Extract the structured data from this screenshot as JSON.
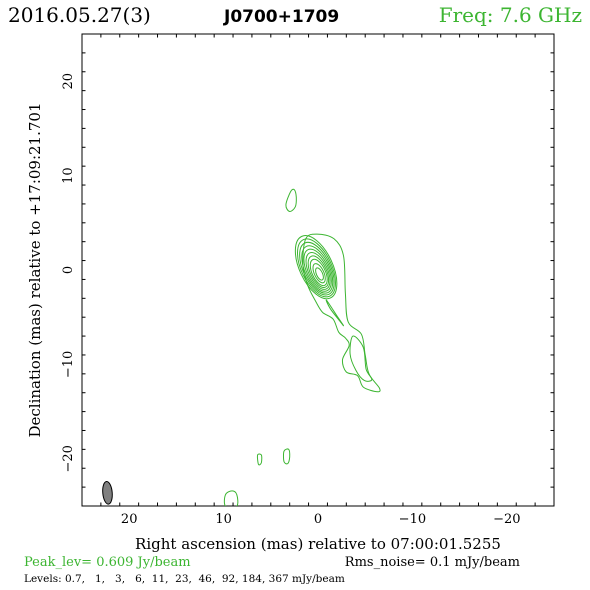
{
  "header": {
    "date": "2016.05.27(3)",
    "source": "J0700+1709",
    "frequency": "Freq: 7.6 GHz"
  },
  "footer": {
    "peak": "Peak_lev=  0.609 Jy/beam",
    "rms": "Rms_noise=  0.1 mJy/beam",
    "levels": "Levels: 0.7,   1,   3,   6,  11,  23,  46,  92, 184, 367 mJy/beam"
  },
  "colors": {
    "contour": "#3cb531",
    "header_freq": "#3cb531",
    "footer_peak": "#3cb531",
    "beam": "#808080",
    "axis": "#000000"
  },
  "chart_data": {
    "type": "contour",
    "title": "",
    "xlabel": "Right ascension (mas) relative to 07:00:01.5255",
    "ylabel": "Declination (mas) relative to +17:09:21.701",
    "xlim": [
      25,
      -25
    ],
    "ylim": [
      -25,
      25
    ],
    "xticks": [
      20,
      10,
      0,
      -10,
      -20
    ],
    "xtick_labels": [
      "20",
      "10",
      "0",
      "−10",
      "−20"
    ],
    "yticks": [
      20,
      10,
      0,
      -10,
      -20
    ],
    "ytick_labels": [
      "20",
      "10",
      "0",
      "−10",
      "−20"
    ],
    "contour_levels_mJy": [
      0.7,
      1,
      3,
      6,
      11,
      23,
      46,
      92,
      184,
      367
    ],
    "peak_Jy_per_beam": 0.609,
    "rms_mJy_per_beam": 0.1,
    "beam": {
      "x": 22.3,
      "y": -23.6,
      "major_mas": 1.2,
      "minor_mas": 0.5,
      "pa_deg": 5
    },
    "core": {
      "x": 0.2,
      "y": 0.3,
      "rings": [
        {
          "a": 3.6,
          "b": 1.75
        },
        {
          "a": 3.3,
          "b": 1.6
        },
        {
          "a": 3.0,
          "b": 1.45
        },
        {
          "a": 2.7,
          "b": 1.3
        },
        {
          "a": 2.4,
          "b": 1.15
        },
        {
          "a": 2.1,
          "b": 1.0
        },
        {
          "a": 1.8,
          "b": 0.85
        },
        {
          "a": 1.5,
          "b": 0.7
        },
        {
          "a": 1.1,
          "b": 0.5
        },
        {
          "a": 0.7,
          "b": 0.32
        }
      ],
      "pa_deg": 25
    },
    "features": [
      {
        "name": "jet-outer",
        "points": [
          [
            1.3,
            3.3
          ],
          [
            0.1,
            3.8
          ],
          [
            -1.7,
            3.3
          ],
          [
            -2.7,
            1.5
          ],
          [
            -2.9,
            -2.5
          ],
          [
            -3.2,
            -5.5
          ],
          [
            -4.6,
            -6.8
          ],
          [
            -5.0,
            -9.0
          ],
          [
            -5.4,
            -11.0
          ],
          [
            -6.5,
            -12.5
          ],
          [
            -6.3,
            -12.9
          ],
          [
            -4.8,
            -12.4
          ],
          [
            -4.2,
            -11.2
          ],
          [
            -3.0,
            -10.8
          ],
          [
            -2.6,
            -9.5
          ],
          [
            -3.3,
            -8.0
          ],
          [
            -2.9,
            -7.2
          ],
          [
            -2.2,
            -6.6
          ],
          [
            -1.6,
            -5.2
          ],
          [
            -0.5,
            -4.5
          ],
          [
            0.2,
            -3.4
          ],
          [
            1.1,
            -1.6
          ],
          [
            1.6,
            0.6
          ]
        ]
      },
      {
        "name": "jet-inner",
        "points": [
          [
            -3.7,
            -7.0
          ],
          [
            -4.8,
            -8.2
          ],
          [
            -5.1,
            -10.5
          ],
          [
            -5.7,
            -11.6
          ],
          [
            -4.9,
            -11.7
          ],
          [
            -4.0,
            -10.6
          ],
          [
            -3.4,
            -8.9
          ]
        ]
      },
      {
        "name": "jet-mid",
        "points": [
          [
            -0.9,
            -3.2
          ],
          [
            -2.1,
            -5.0
          ],
          [
            -2.7,
            -5.9
          ],
          [
            -2.3,
            -5.4
          ],
          [
            -1.3,
            -4.1
          ]
        ]
      },
      {
        "name": "north-blob",
        "points": [
          [
            2.5,
            8.5
          ],
          [
            2.9,
            8.3
          ],
          [
            3.4,
            6.9
          ],
          [
            3.0,
            6.2
          ],
          [
            2.4,
            6.7
          ],
          [
            2.3,
            7.7
          ]
        ]
      },
      {
        "name": "south-blob-1",
        "points": [
          [
            3.1,
            -19.0
          ],
          [
            3.6,
            -19.2
          ],
          [
            3.6,
            -20.3
          ],
          [
            3.2,
            -20.5
          ],
          [
            3.0,
            -19.8
          ]
        ]
      },
      {
        "name": "south-blob-2",
        "points": [
          [
            6.0,
            -19.6
          ],
          [
            6.4,
            -19.6
          ],
          [
            6.3,
            -20.6
          ],
          [
            6.0,
            -20.4
          ]
        ]
      },
      {
        "name": "edge-blob",
        "points": [
          [
            9.8,
            -25.0
          ],
          [
            9.8,
            -23.8
          ],
          [
            9.1,
            -23.4
          ],
          [
            8.6,
            -23.8
          ],
          [
            8.6,
            -25.0
          ]
        ]
      }
    ]
  }
}
